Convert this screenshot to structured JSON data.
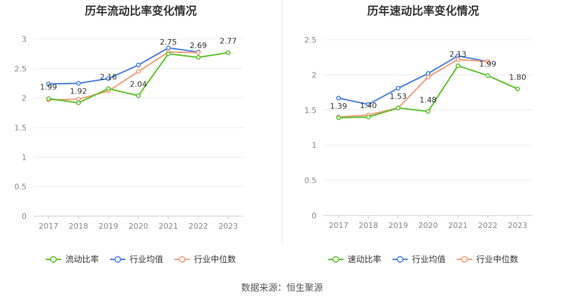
{
  "source_text": "数据来源：恒生聚源",
  "chart_data": [
    {
      "type": "line",
      "title": "历年流动比率变化情况",
      "categories": [
        "2017",
        "2018",
        "2019",
        "2020",
        "2021",
        "2022",
        "2023"
      ],
      "ylim": [
        0,
        3
      ],
      "yticks": [
        "0",
        "0.5",
        "1",
        "1.5",
        "2",
        "2.5",
        "3"
      ],
      "ytick_values": [
        0,
        0.5,
        1,
        1.5,
        2,
        2.5,
        3
      ],
      "grid": true,
      "legend_position": "bottom",
      "series": [
        {
          "name": "流动比率",
          "color": "#5cc22b",
          "values": [
            1.99,
            1.92,
            2.16,
            2.04,
            2.75,
            2.69,
            2.77
          ],
          "labels": [
            "1.99",
            "1.92",
            "2.16",
            "2.04",
            "2.75",
            "2.69",
            "2.77"
          ]
        },
        {
          "name": "行业均值",
          "color": "#4a7fe0",
          "values": [
            2.24,
            2.25,
            2.33,
            2.56,
            2.85,
            2.78,
            null
          ]
        },
        {
          "name": "行业中位数",
          "color": "#f59c7a",
          "values": [
            1.97,
            1.98,
            2.12,
            2.45,
            2.78,
            2.77,
            null
          ]
        }
      ]
    },
    {
      "type": "line",
      "title": "历年速动比率变化情况",
      "categories": [
        "2017",
        "2018",
        "2019",
        "2020",
        "2021",
        "2022",
        "2023"
      ],
      "ylim": [
        0,
        2.5
      ],
      "yticks": [
        "0",
        "0.5",
        "1",
        "1.5",
        "2",
        "2.5"
      ],
      "ytick_values": [
        0,
        0.5,
        1,
        1.5,
        2,
        2.5
      ],
      "grid": true,
      "legend_position": "bottom",
      "series": [
        {
          "name": "速动比率",
          "color": "#5cc22b",
          "values": [
            1.39,
            1.4,
            1.53,
            1.48,
            2.13,
            1.99,
            1.8
          ],
          "labels": [
            "1.39",
            "1.40",
            "1.53",
            "1.48",
            "2.13",
            "1.99",
            "1.80"
          ]
        },
        {
          "name": "行业均值",
          "color": "#4a7fe0",
          "values": [
            1.67,
            1.58,
            1.81,
            2.02,
            2.27,
            2.19,
            null
          ]
        },
        {
          "name": "行业中位数",
          "color": "#f59c7a",
          "values": [
            1.4,
            1.43,
            1.53,
            1.97,
            2.22,
            2.19,
            null
          ]
        }
      ]
    }
  ]
}
